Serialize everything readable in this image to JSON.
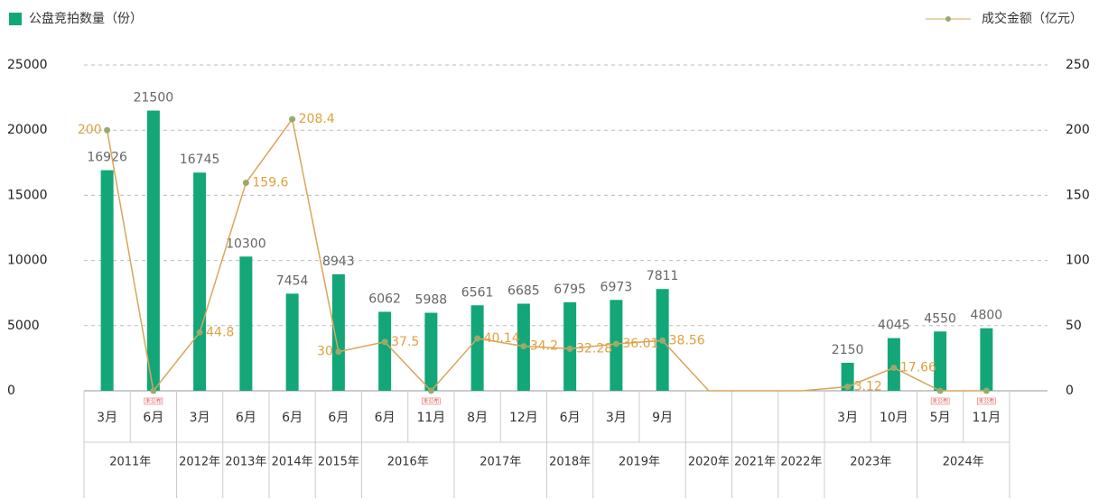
{
  "chart_data": {
    "type": "bar",
    "categories": [
      "3月",
      "6月",
      "3月",
      "6月",
      "6月",
      "6月",
      "6月",
      "11月",
      "8月",
      "12月",
      "6月",
      "3月",
      "9月",
      null,
      null,
      null,
      "3月",
      "10月",
      "5月",
      "11月"
    ],
    "groups": [
      {
        "label": "2011年",
        "span": 2
      },
      {
        "label": "2012年",
        "span": 1
      },
      {
        "label": "2013年",
        "span": 1
      },
      {
        "label": "2014年",
        "span": 1
      },
      {
        "label": "2015年",
        "span": 1
      },
      {
        "label": "2016年",
        "span": 2
      },
      {
        "label": "2017年",
        "span": 2
      },
      {
        "label": "2018年",
        "span": 1
      },
      {
        "label": "2019年",
        "span": 2
      },
      {
        "label": "2020年",
        "span": 1
      },
      {
        "label": "2021年",
        "span": 1
      },
      {
        "label": "2022年",
        "span": 1
      },
      {
        "label": "2023年",
        "span": 2
      },
      {
        "label": "2024年",
        "span": 2
      }
    ],
    "series": [
      {
        "name": "公盘竞拍数量（份）",
        "type": "bar",
        "color": "#13a678",
        "values": [
          16926,
          21500,
          16745,
          10300,
          7454,
          8943,
          6062,
          5988,
          6561,
          6685,
          6795,
          6973,
          7811,
          null,
          null,
          null,
          2150,
          4045,
          4550,
          4800
        ]
      },
      {
        "name": "成交金额（亿元）",
        "type": "line",
        "axis": "y2",
        "color": "#d9a55b",
        "marker_color": "#9aaa6b",
        "values": [
          200,
          0,
          44.8,
          159.6,
          208.4,
          30,
          37.5,
          0,
          40.14,
          34.2,
          32.28,
          36.01,
          38.56,
          0,
          0,
          0,
          3.12,
          17.66,
          0,
          0
        ],
        "notes": [
          null,
          "未公布",
          null,
          null,
          null,
          null,
          null,
          "未公布",
          null,
          null,
          null,
          null,
          null,
          null,
          null,
          null,
          null,
          null,
          "未公布",
          "未公布"
        ]
      }
    ],
    "ylim": [
      0,
      25000
    ],
    "yticks": [
      0,
      5000,
      10000,
      15000,
      20000,
      25000
    ],
    "y2lim": [
      0,
      250
    ],
    "y2ticks": [
      0,
      50,
      100,
      150,
      200,
      250
    ],
    "grid": true
  }
}
